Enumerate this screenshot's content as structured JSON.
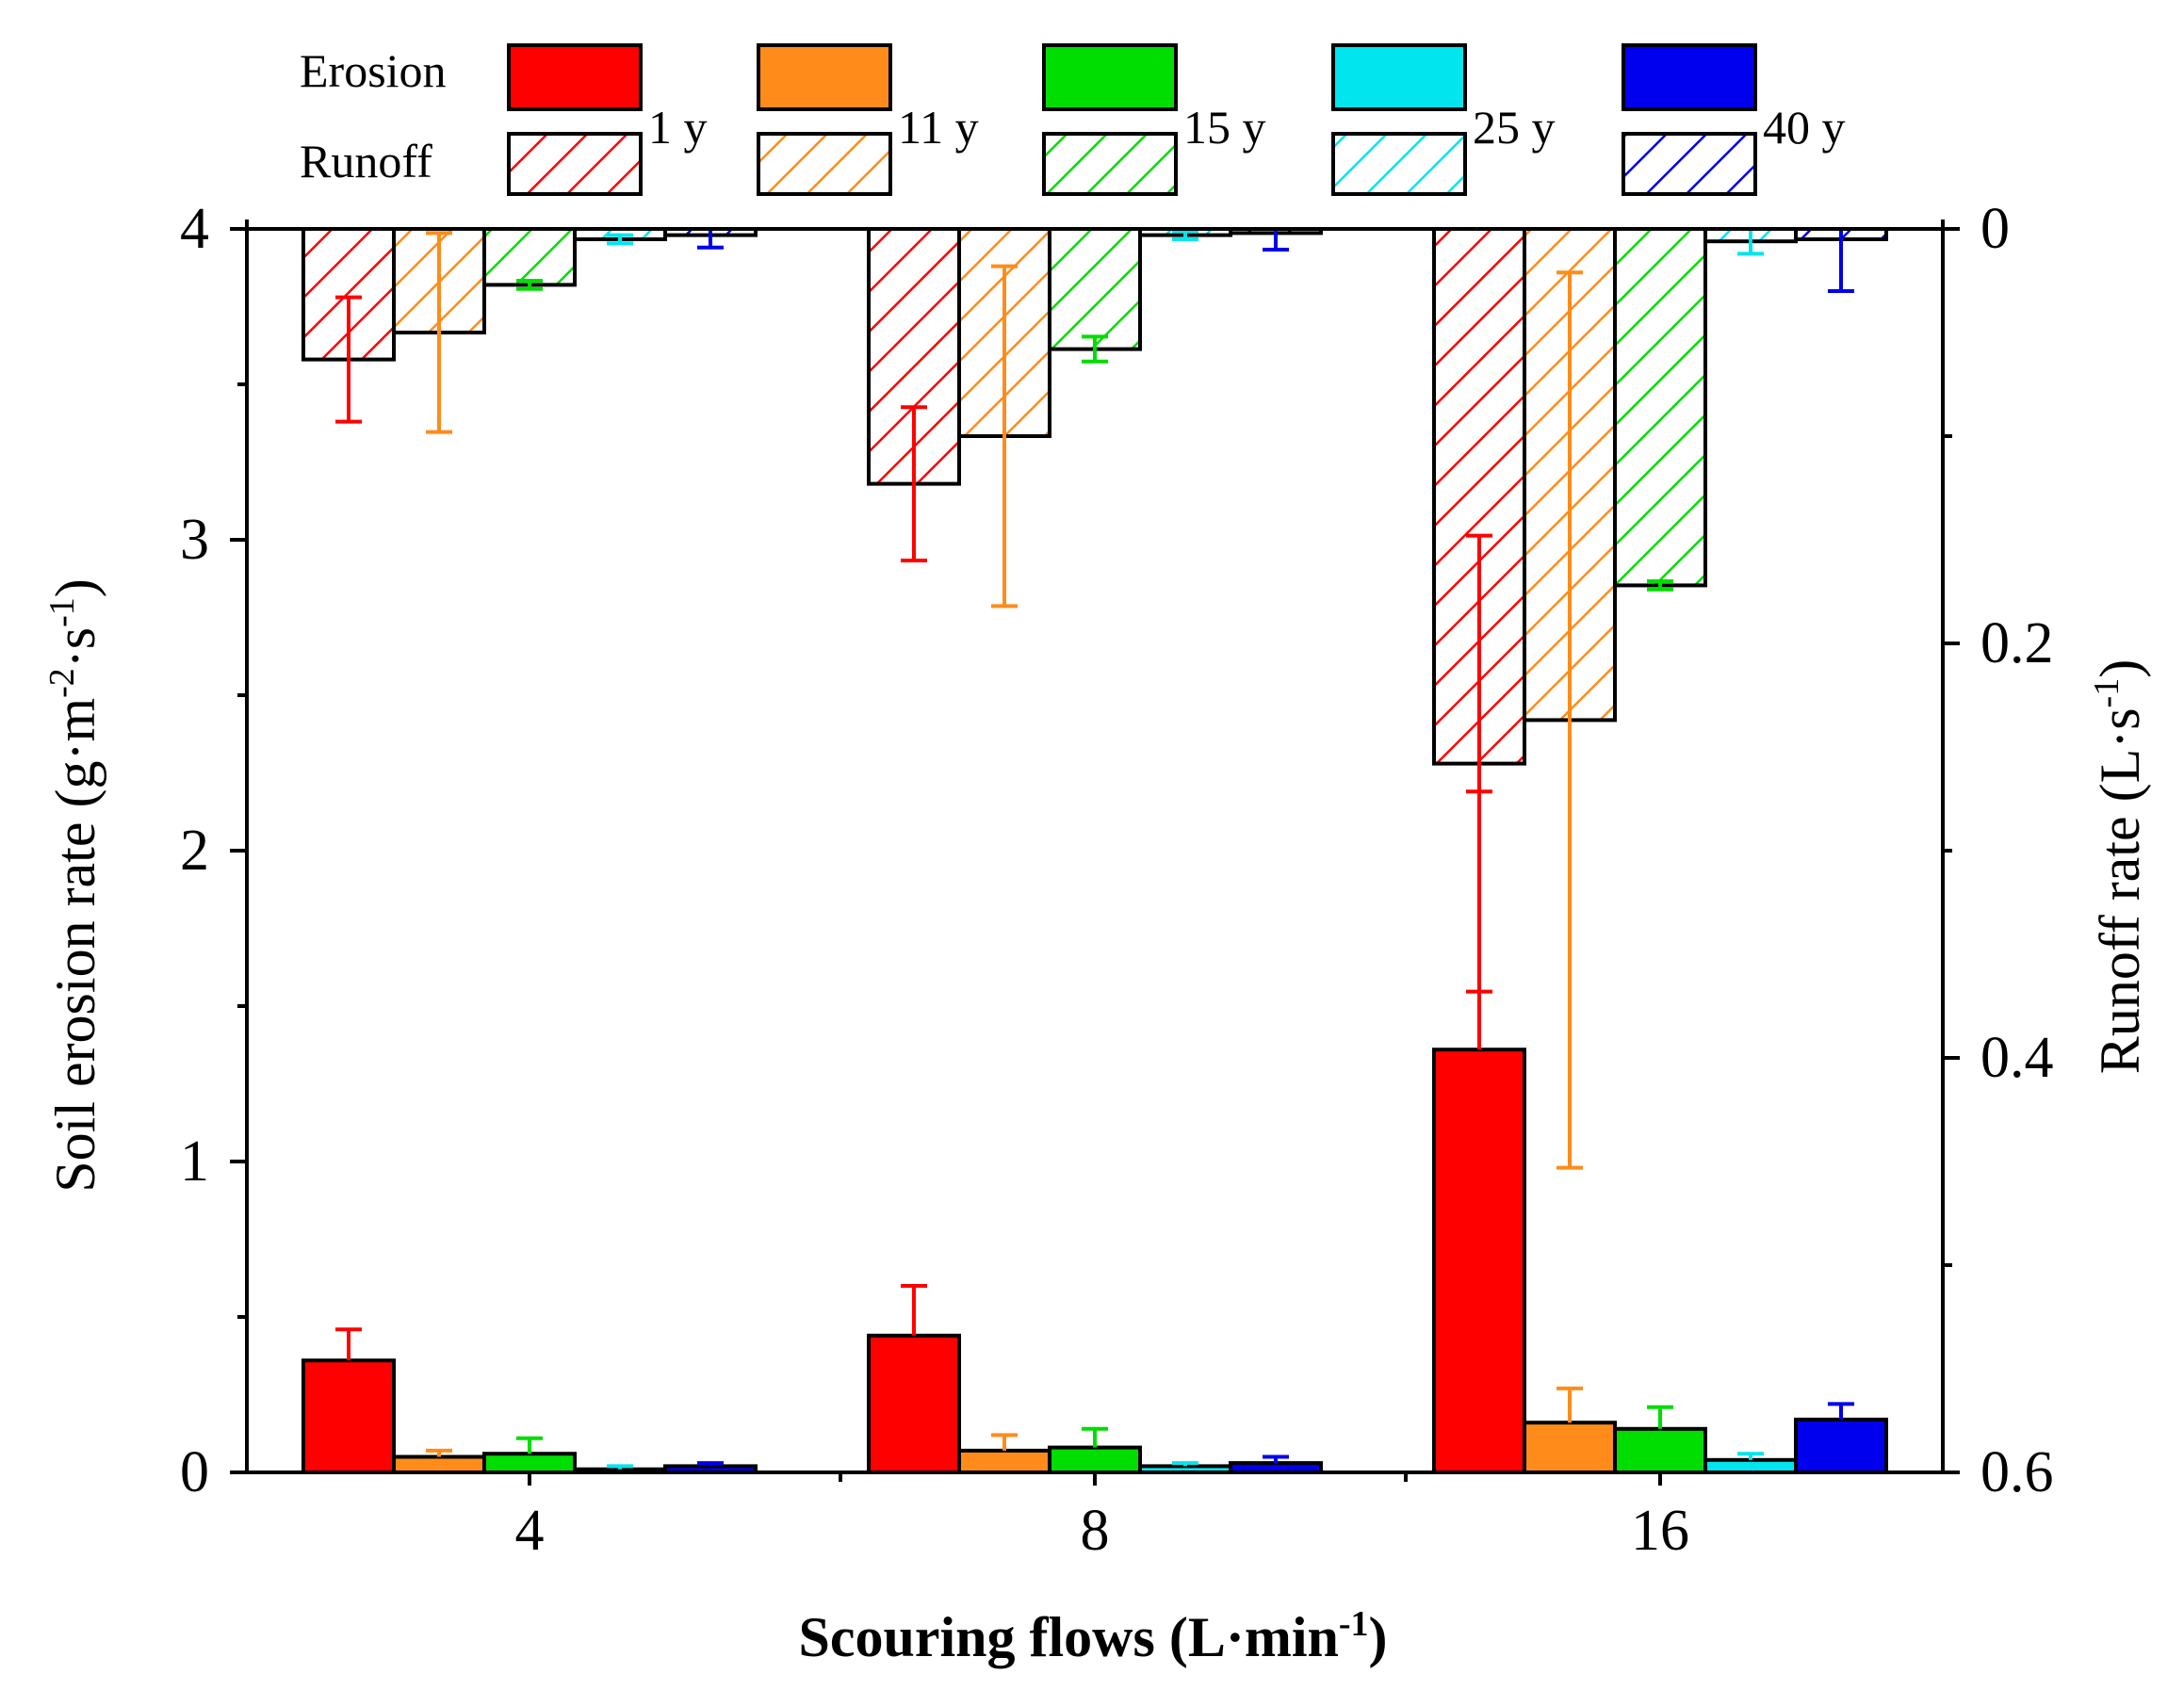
{
  "chart_data": {
    "type": "bar",
    "xlabel": "Scouring flows (L·min⁻¹)",
    "ylabel": "Soil erosion rate (g·m⁻²·s⁻¹)",
    "y2label": "Runoff rate (L·s⁻¹)",
    "xlabel_parts": {
      "main": "Scouring flows (L·min",
      "sup": "-1",
      "close": ")"
    },
    "ylabel_parts": {
      "main": "Soil erosion rate (g·m",
      "sup1": "-2",
      "mid": "·s",
      "sup2": "-1",
      "close": ")"
    },
    "y2label_parts": {
      "main": "Runoff rate (L·s",
      "sup": "-1",
      "close": ")"
    },
    "categories": [
      "4",
      "8",
      "16"
    ],
    "ylim": [
      0,
      4
    ],
    "yticks": [
      "0",
      "1",
      "2",
      "3",
      "4"
    ],
    "y2lim": [
      0,
      0.6
    ],
    "y2_inverted": true,
    "y2ticks": [
      "0",
      "0.2",
      "0.4",
      "0.6"
    ],
    "legend": {
      "row_labels": [
        "Erosion",
        "Runoff"
      ],
      "series_labels": [
        "1 y",
        "11 y",
        "15 y",
        "25 y",
        "40 y"
      ]
    },
    "series": [
      {
        "name": "1 y",
        "color": "#ff0000",
        "erosion": [
          0.36,
          0.44,
          1.36
        ],
        "erosion_err": [
          0.1,
          0.16,
          0.83
        ],
        "runoff": [
          0.063,
          0.123,
          0.258
        ],
        "runoff_err": [
          0.03,
          0.037,
          0.11
        ]
      },
      {
        "name": "11 y",
        "color": "#ff8c1a",
        "erosion": [
          0.05,
          0.07,
          0.16
        ],
        "erosion_err": [
          0.02,
          0.05,
          0.11
        ],
        "runoff": [
          0.05,
          0.1,
          0.237
        ],
        "runoff_err": [
          0.048,
          0.082,
          0.216
        ]
      },
      {
        "name": "15 y",
        "color": "#00dd00",
        "erosion": [
          0.06,
          0.08,
          0.14
        ],
        "erosion_err": [
          0.05,
          0.06,
          0.07
        ],
        "runoff": [
          0.027,
          0.058,
          0.172
        ],
        "runoff_err": [
          0.002,
          0.006,
          0.002
        ]
      },
      {
        "name": "25 y",
        "color": "#00e5ee",
        "erosion": [
          0.01,
          0.02,
          0.04
        ],
        "erosion_err": [
          0.01,
          0.01,
          0.02
        ],
        "runoff": [
          0.005,
          0.003,
          0.006
        ],
        "runoff_err": [
          0.002,
          0.002,
          0.006
        ]
      },
      {
        "name": "40 y",
        "color": "#0000ee",
        "erosion": [
          0.02,
          0.03,
          0.17
        ],
        "erosion_err": [
          0.01,
          0.02,
          0.05
        ],
        "runoff": [
          0.003,
          0.002,
          0.005
        ],
        "runoff_err": [
          0.006,
          0.008,
          0.025
        ]
      }
    ]
  }
}
